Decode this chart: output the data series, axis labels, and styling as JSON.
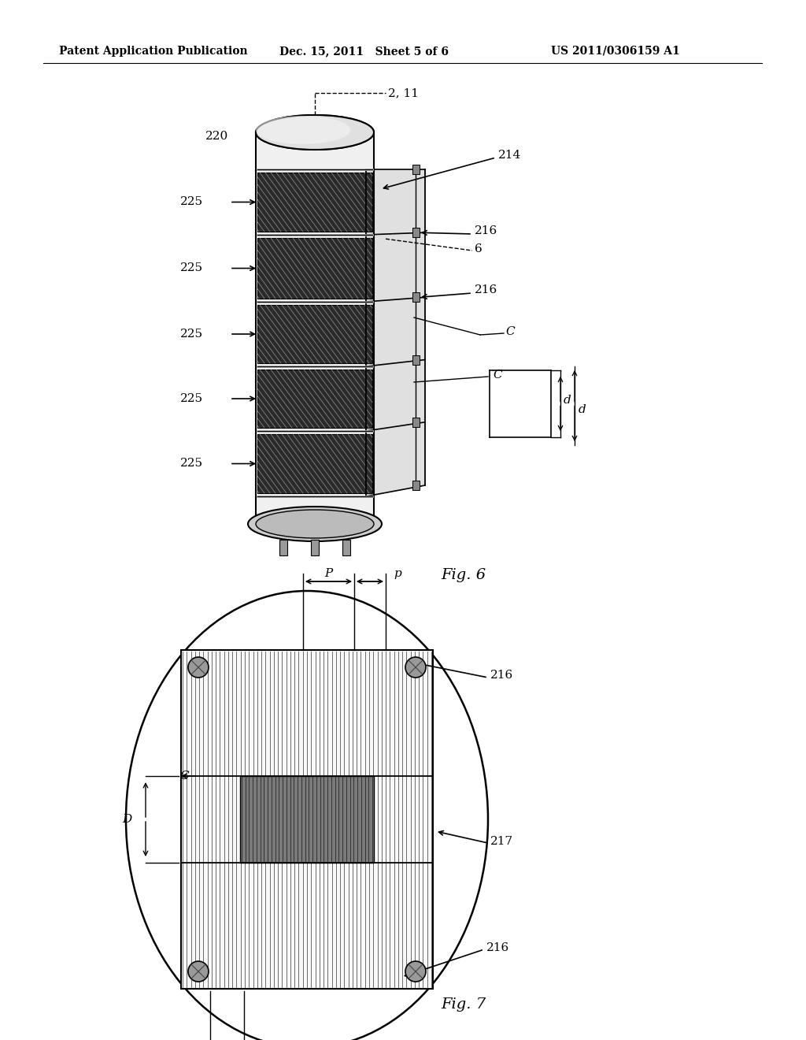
{
  "bg_color": "#ffffff",
  "header_left": "Patent Application Publication",
  "header_mid": "Dec. 15, 2011   Sheet 5 of 6",
  "header_right": "US 2011/0306159 A1",
  "fig6_label": "Fig. 6",
  "fig7_label": "Fig. 7"
}
